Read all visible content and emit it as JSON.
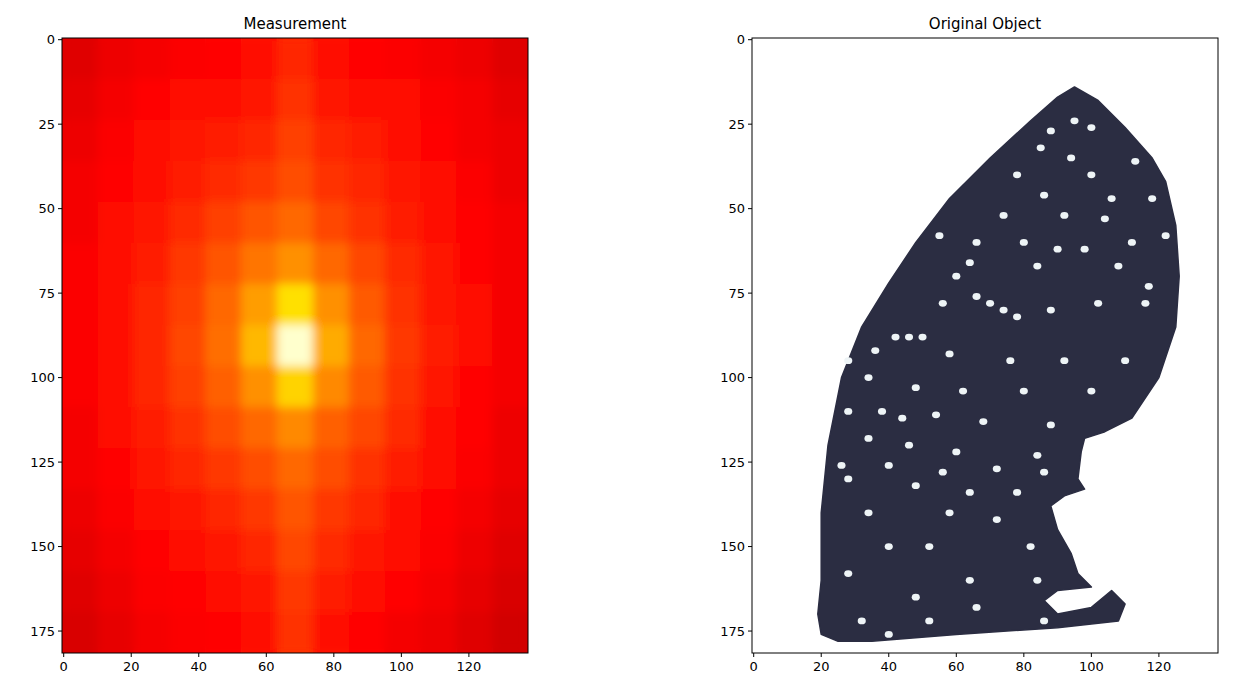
{
  "chart_data": [
    {
      "type": "heatmap",
      "title": "Measurement",
      "color": "hot",
      "xlim": [
        -0.5,
        137.5
      ],
      "ylim": [
        181.5,
        -0.5
      ],
      "xticks": [
        0,
        20,
        40,
        60,
        80,
        100,
        120
      ],
      "yticks": [
        0,
        25,
        50,
        75,
        100,
        125,
        150,
        175
      ],
      "zlim": [
        0,
        1
      ],
      "x_bins": [
        -0.5,
        10.12,
        20.73,
        31.35,
        41.96,
        52.58,
        63.19,
        73.81,
        84.42,
        95.04,
        105.65,
        116.27,
        126.88,
        137.5
      ],
      "y_bins": [
        -0.5,
        11.63,
        23.77,
        35.9,
        48.03,
        60.17,
        72.3,
        84.43,
        96.57,
        108.7,
        120.83,
        132.97,
        145.1,
        157.23,
        169.37,
        181.5
      ],
      "values": [
        [
          0.32,
          0.34,
          0.35,
          0.36,
          0.37,
          0.38,
          0.42,
          0.38,
          0.37,
          0.36,
          0.35,
          0.34,
          0.32
        ],
        [
          0.33,
          0.35,
          0.37,
          0.38,
          0.39,
          0.4,
          0.44,
          0.4,
          0.39,
          0.38,
          0.36,
          0.35,
          0.33
        ],
        [
          0.34,
          0.36,
          0.38,
          0.4,
          0.41,
          0.42,
          0.46,
          0.42,
          0.41,
          0.39,
          0.37,
          0.35,
          0.34
        ],
        [
          0.35,
          0.37,
          0.39,
          0.41,
          0.43,
          0.45,
          0.48,
          0.44,
          0.42,
          0.4,
          0.38,
          0.36,
          0.34
        ],
        [
          0.35,
          0.38,
          0.4,
          0.43,
          0.46,
          0.49,
          0.52,
          0.47,
          0.44,
          0.41,
          0.39,
          0.37,
          0.35
        ],
        [
          0.36,
          0.38,
          0.41,
          0.45,
          0.49,
          0.54,
          0.58,
          0.52,
          0.47,
          0.43,
          0.4,
          0.37,
          0.35
        ],
        [
          0.36,
          0.39,
          0.42,
          0.46,
          0.52,
          0.6,
          0.7,
          0.58,
          0.5,
          0.44,
          0.4,
          0.38,
          0.35
        ],
        [
          0.36,
          0.39,
          0.42,
          0.47,
          0.53,
          0.64,
          0.95,
          0.62,
          0.52,
          0.45,
          0.41,
          0.38,
          0.35
        ],
        [
          0.36,
          0.39,
          0.42,
          0.46,
          0.51,
          0.58,
          0.68,
          0.57,
          0.5,
          0.44,
          0.4,
          0.37,
          0.35
        ],
        [
          0.35,
          0.38,
          0.41,
          0.44,
          0.48,
          0.52,
          0.57,
          0.51,
          0.47,
          0.43,
          0.39,
          0.37,
          0.34
        ],
        [
          0.35,
          0.37,
          0.4,
          0.42,
          0.45,
          0.48,
          0.52,
          0.48,
          0.44,
          0.41,
          0.38,
          0.36,
          0.34
        ],
        [
          0.34,
          0.36,
          0.38,
          0.4,
          0.42,
          0.45,
          0.49,
          0.45,
          0.42,
          0.39,
          0.37,
          0.35,
          0.33
        ],
        [
          0.33,
          0.35,
          0.37,
          0.39,
          0.4,
          0.42,
          0.47,
          0.43,
          0.4,
          0.38,
          0.36,
          0.34,
          0.32
        ],
        [
          0.32,
          0.34,
          0.36,
          0.37,
          0.38,
          0.4,
          0.45,
          0.41,
          0.38,
          0.37,
          0.35,
          0.33,
          0.31
        ],
        [
          0.31,
          0.33,
          0.35,
          0.36,
          0.37,
          0.38,
          0.44,
          0.39,
          0.37,
          0.35,
          0.34,
          0.32,
          0.3
        ]
      ]
    },
    {
      "type": "mask",
      "title": "Original Object",
      "color": "#2b2d42",
      "xlim": [
        -0.5,
        137.5
      ],
      "ylim": [
        181.5,
        -0.5
      ],
      "xticks": [
        0,
        20,
        40,
        60,
        80,
        100,
        120
      ],
      "yticks": [
        0,
        25,
        50,
        75,
        100,
        125,
        150,
        175
      ],
      "outline": [
        [
          95,
          14
        ],
        [
          102,
          18
        ],
        [
          110,
          26
        ],
        [
          118,
          35
        ],
        [
          122,
          42
        ],
        [
          125,
          55
        ],
        [
          126,
          70
        ],
        [
          125,
          85
        ],
        [
          120,
          100
        ],
        [
          112,
          112
        ],
        [
          104,
          116
        ],
        [
          98,
          118
        ],
        [
          97,
          122
        ],
        [
          96,
          130
        ],
        [
          98,
          133
        ],
        [
          92,
          135
        ],
        [
          88,
          138
        ],
        [
          90,
          145
        ],
        [
          94,
          152
        ],
        [
          96,
          158
        ],
        [
          100,
          162
        ],
        [
          90,
          163
        ],
        [
          86,
          166
        ],
        [
          90,
          170
        ],
        [
          100,
          168
        ],
        [
          106,
          163
        ],
        [
          110,
          167
        ],
        [
          108,
          172
        ],
        [
          90,
          174
        ],
        [
          60,
          176
        ],
        [
          35,
          178
        ],
        [
          25,
          178
        ],
        [
          20,
          176
        ],
        [
          19,
          170
        ],
        [
          20,
          160
        ],
        [
          20,
          140
        ],
        [
          22,
          120
        ],
        [
          26,
          100
        ],
        [
          32,
          85
        ],
        [
          40,
          72
        ],
        [
          48,
          60
        ],
        [
          58,
          47
        ],
        [
          70,
          35
        ],
        [
          82,
          24
        ],
        [
          90,
          17
        ]
      ],
      "holes": [
        [
          95,
          24
        ],
        [
          88,
          27
        ],
        [
          100,
          26
        ],
        [
          85,
          32
        ],
        [
          94,
          35
        ],
        [
          78,
          40
        ],
        [
          100,
          40
        ],
        [
          113,
          36
        ],
        [
          86,
          46
        ],
        [
          106,
          47
        ],
        [
          118,
          47
        ],
        [
          74,
          52
        ],
        [
          92,
          52
        ],
        [
          104,
          53
        ],
        [
          55,
          58
        ],
        [
          66,
          60
        ],
        [
          80,
          60
        ],
        [
          90,
          62
        ],
        [
          98,
          62
        ],
        [
          112,
          60
        ],
        [
          122,
          58
        ],
        [
          64,
          66
        ],
        [
          84,
          67
        ],
        [
          108,
          67
        ],
        [
          60,
          70
        ],
        [
          117,
          73
        ],
        [
          56,
          78
        ],
        [
          102,
          78
        ],
        [
          116,
          78
        ],
        [
          66,
          76
        ],
        [
          70,
          78
        ],
        [
          74,
          80
        ],
        [
          78,
          82
        ],
        [
          88,
          80
        ],
        [
          42,
          88
        ],
        [
          46,
          88
        ],
        [
          50,
          88
        ],
        [
          28,
          95
        ],
        [
          36,
          92
        ],
        [
          58,
          93
        ],
        [
          76,
          95
        ],
        [
          92,
          95
        ],
        [
          110,
          95
        ],
        [
          34,
          100
        ],
        [
          48,
          103
        ],
        [
          62,
          104
        ],
        [
          80,
          104
        ],
        [
          100,
          104
        ],
        [
          28,
          110
        ],
        [
          38,
          110
        ],
        [
          44,
          112
        ],
        [
          54,
          111
        ],
        [
          68,
          113
        ],
        [
          88,
          114
        ],
        [
          34,
          118
        ],
        [
          46,
          120
        ],
        [
          60,
          122
        ],
        [
          84,
          123
        ],
        [
          26,
          126
        ],
        [
          40,
          126
        ],
        [
          56,
          128
        ],
        [
          72,
          127
        ],
        [
          86,
          128
        ],
        [
          28,
          130
        ],
        [
          48,
          132
        ],
        [
          64,
          134
        ],
        [
          78,
          134
        ],
        [
          34,
          140
        ],
        [
          58,
          140
        ],
        [
          72,
          142
        ],
        [
          40,
          150
        ],
        [
          52,
          150
        ],
        [
          82,
          150
        ],
        [
          28,
          158
        ],
        [
          64,
          160
        ],
        [
          84,
          160
        ],
        [
          48,
          165
        ],
        [
          66,
          168
        ],
        [
          32,
          172
        ],
        [
          52,
          172
        ],
        [
          86,
          172
        ],
        [
          40,
          176
        ]
      ]
    }
  ]
}
